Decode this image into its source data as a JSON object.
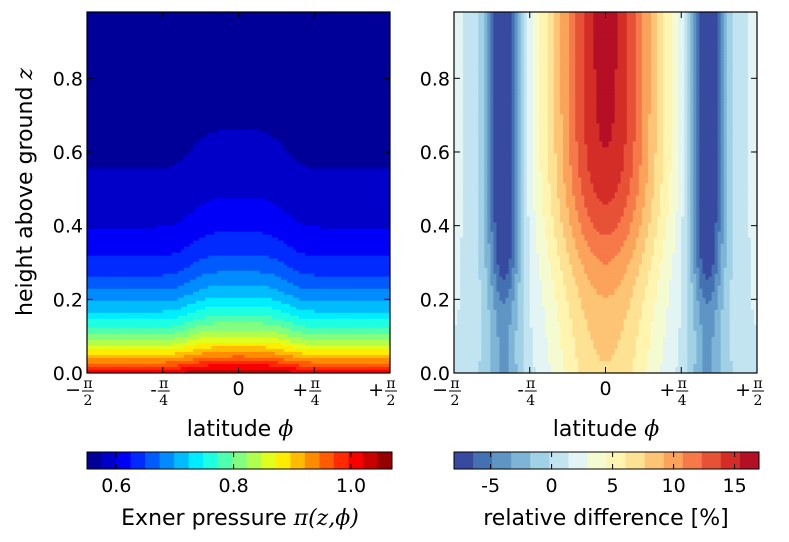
{
  "chart_data": [
    {
      "type": "heatmap",
      "subtype": "filled-contour",
      "title": "",
      "xlabel": "latitude",
      "xlabel_symbol": "ϕ",
      "ylabel": "height above ground",
      "ylabel_symbol": "z",
      "x_range": [
        -1.5708,
        1.5708
      ],
      "ylim": [
        0.0,
        1.0
      ],
      "x_ticks": [
        {
          "value": -1.5708,
          "sign": "−",
          "num": "π",
          "den": "2"
        },
        {
          "value": -0.7854,
          "sign": "-",
          "num": "π",
          "den": "4"
        },
        {
          "value": 0,
          "text": "0"
        },
        {
          "value": 0.7854,
          "sign": "+",
          "num": "π",
          "den": "4"
        },
        {
          "value": 1.5708,
          "sign": "+",
          "num": "π",
          "den": "2"
        }
      ],
      "y_ticks": [
        "0.0",
        "0.2",
        "0.4",
        "0.6",
        "0.8"
      ],
      "y_tick_values": [
        0.0,
        0.2,
        0.4,
        0.6,
        0.8
      ],
      "colorbar": {
        "label": "Exner pressure",
        "label_math": "π(z,ϕ)",
        "range": [
          0.55,
          1.07
        ],
        "ticks": [
          "0.6",
          "0.8",
          "1.0"
        ],
        "tick_values": [
          0.6,
          0.8,
          1.0
        ],
        "levels": 21,
        "colormap": "jet"
      },
      "field": {
        "description": "pi decreases with height; slightly higher near equator",
        "surface_equator": 1.05,
        "surface_edge": 1.02,
        "top_value": 0.56
      }
    },
    {
      "type": "heatmap",
      "subtype": "filled-contour",
      "title": "",
      "xlabel": "latitude",
      "xlabel_symbol": "ϕ",
      "ylabel": "",
      "x_range": [
        -1.5708,
        1.5708
      ],
      "ylim": [
        0.0,
        1.0
      ],
      "x_ticks": [
        {
          "value": -1.5708,
          "sign": "−",
          "num": "π",
          "den": "2"
        },
        {
          "value": -0.7854,
          "sign": "-",
          "num": "π",
          "den": "4"
        },
        {
          "value": 0,
          "text": "0"
        },
        {
          "value": 0.7854,
          "sign": "+",
          "num": "π",
          "den": "4"
        },
        {
          "value": 1.5708,
          "sign": "+",
          "num": "π",
          "den": "2"
        }
      ],
      "y_ticks": [
        "0.0",
        "0.2",
        "0.4",
        "0.6",
        "0.8"
      ],
      "y_tick_values": [
        0.0,
        0.2,
        0.4,
        0.6,
        0.8
      ],
      "colorbar": {
        "label": "relative difference [%]",
        "range": [
          -8,
          17
        ],
        "ticks": [
          "-5",
          "0",
          "5",
          "10",
          "15"
        ],
        "tick_values": [
          -5,
          0,
          5,
          10,
          15
        ],
        "levels": 16,
        "colormap": "RdYlBu_r"
      },
      "field": {
        "description": "positive core around equator up to ~16%, negative bands near ±3π/8 down to ~-7%",
        "max": 16,
        "min": -7
      }
    }
  ]
}
